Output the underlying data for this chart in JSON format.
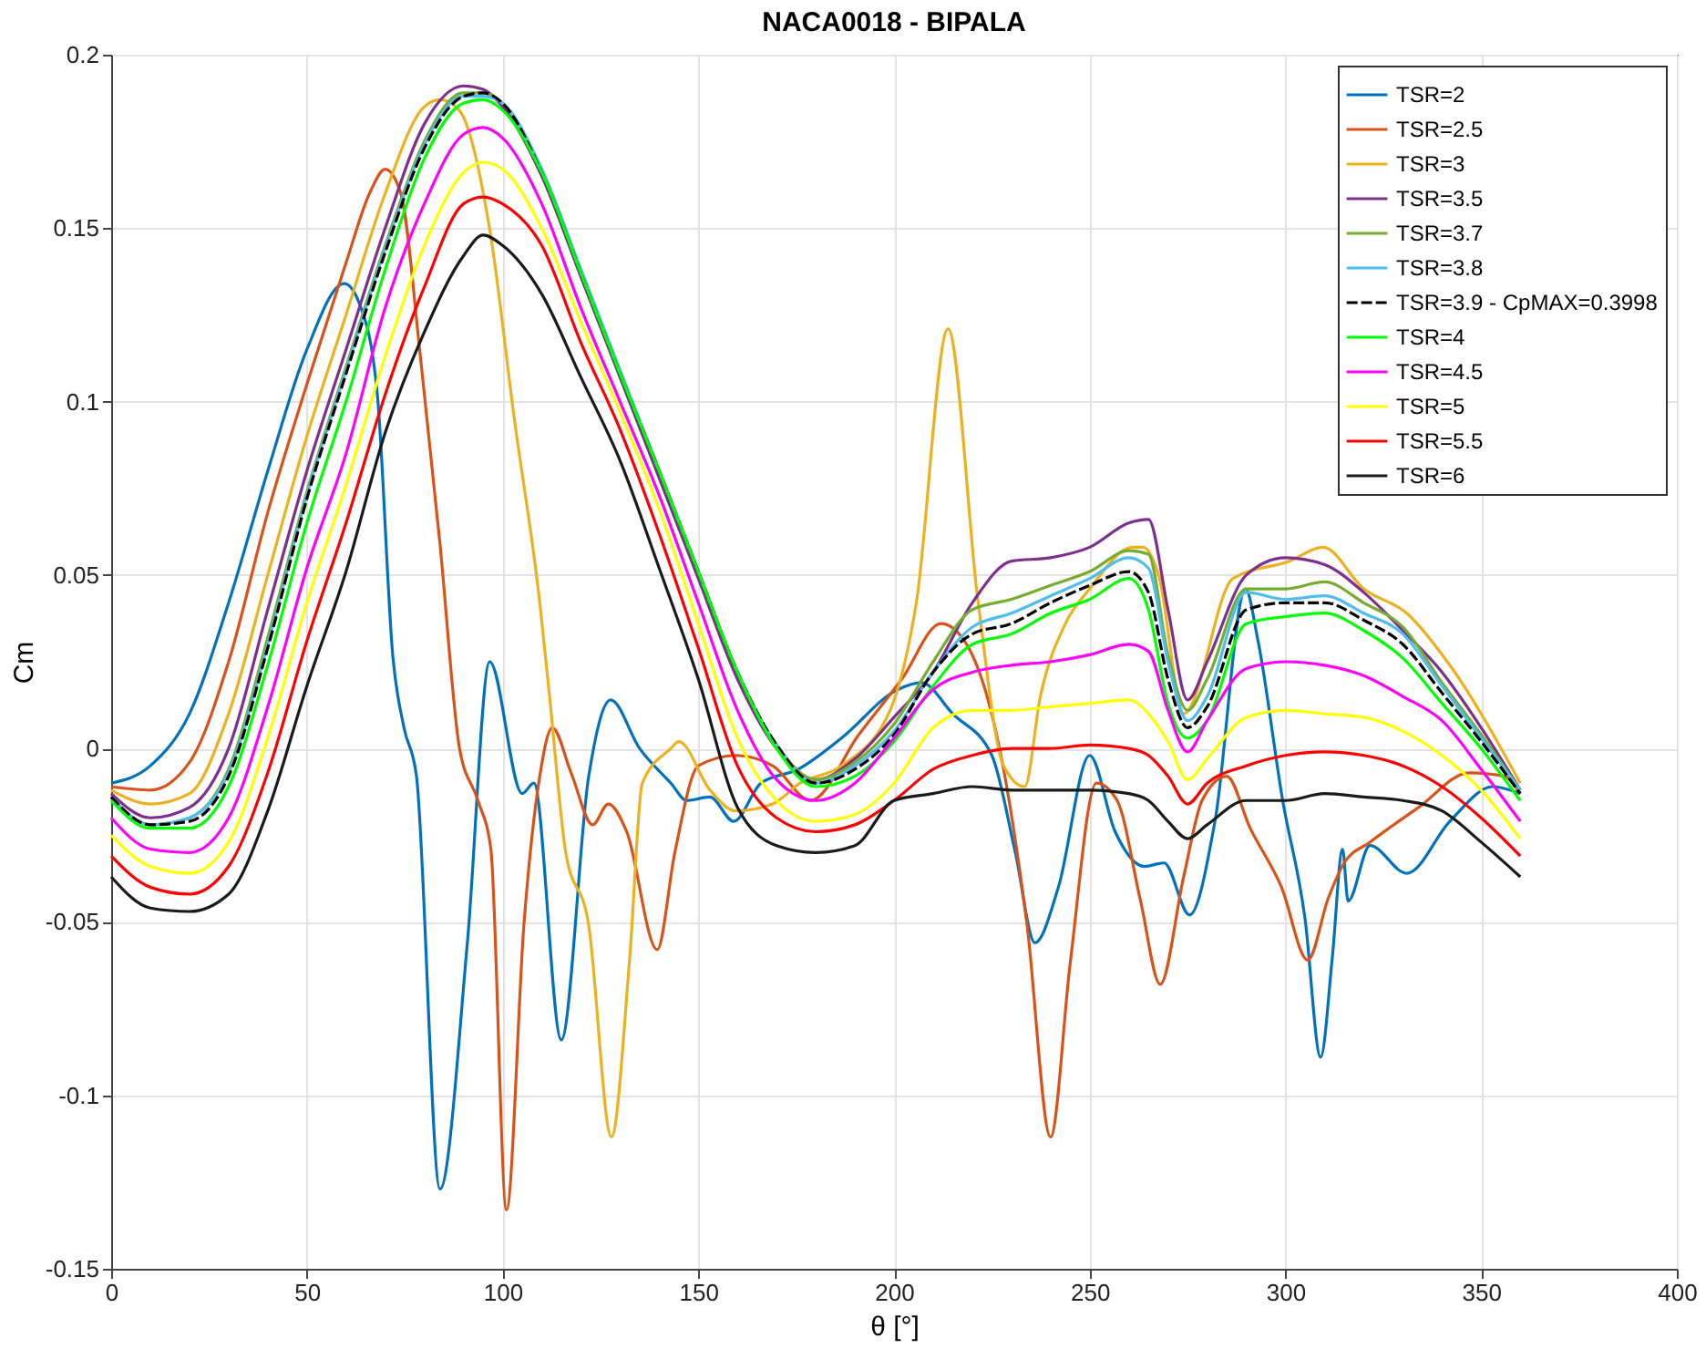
{
  "chart_data": {
    "type": "line",
    "title": "NACA0018 - BIPALA",
    "xlabel": "θ [°]",
    "ylabel": "Cm",
    "xlim": [
      0,
      400
    ],
    "xticks": [
      0,
      50,
      100,
      150,
      200,
      250,
      300,
      350,
      400
    ],
    "ylim": [
      -0.15,
      0.2
    ],
    "yticks": [
      -0.15,
      -0.1,
      -0.05,
      0,
      0.05,
      0.1,
      0.15,
      0.2
    ],
    "grid": true,
    "legend": "top right",
    "line_style": "solid",
    "x": [
      0,
      10,
      20,
      30,
      40,
      50,
      60,
      70,
      80,
      90,
      95,
      100,
      110,
      120,
      130,
      140,
      150,
      160,
      170,
      180,
      190,
      200,
      210,
      220,
      230,
      240,
      250,
      260,
      265,
      270,
      275,
      280,
      290,
      300,
      310,
      320,
      330,
      340,
      350,
      360
    ],
    "series": [
      {
        "name": "TSR=2",
        "color": "#0072bd",
        "x": [
          0,
          10,
          20,
          30,
          40,
          50,
          59.5,
          63.5,
          68,
          72,
          74.8,
          78,
          84,
          91,
          96.7,
          105,
          108,
          115,
          122,
          127.6,
          135,
          143,
          147,
          153,
          159,
          166,
          175.5,
          186.6,
          201,
          207,
          215,
          225,
          231,
          236,
          242,
          250,
          256.5,
          264,
          269,
          275.5,
          282,
          289.8,
          293,
          299.3,
          305,
          309,
          312,
          314.6,
          316,
          321.6,
          331,
          342,
          353,
          360
        ],
        "values": [
          -0.01,
          -0.005,
          0.01,
          0.042,
          0.08,
          0.115,
          0.134,
          0.128,
          0.102,
          0.026,
          0.006,
          -0.008,
          -0.127,
          -0.056,
          0.025,
          -0.013,
          -0.01,
          -0.084,
          -0.008,
          0.014,
          0.0,
          -0.01,
          -0.015,
          -0.014,
          -0.021,
          -0.01,
          -0.006,
          0.003,
          0.017,
          0.019,
          0.01,
          -0.002,
          -0.03,
          -0.056,
          -0.04,
          -0.002,
          -0.024,
          -0.034,
          -0.033,
          -0.048,
          -0.021,
          0.046,
          0.031,
          -0.015,
          -0.049,
          -0.089,
          -0.06,
          -0.029,
          -0.044,
          -0.028,
          -0.036,
          -0.021,
          -0.011,
          -0.013
        ]
      },
      {
        "name": "TSR=2.5",
        "color": "#d95319",
        "x": [
          0,
          10,
          20,
          30,
          40,
          50,
          60,
          66,
          70,
          74,
          79,
          84,
          89,
          93.7,
          97,
          101,
          105.5,
          109.5,
          112.7,
          117.5,
          123,
          127,
          131.7,
          139.5,
          144,
          150,
          159.6,
          169,
          178.7,
          191,
          202,
          212,
          218,
          228,
          234,
          240,
          245,
          251.7,
          257,
          263,
          268,
          274,
          278.7,
          285,
          291,
          299,
          305.7,
          311,
          315,
          321.6,
          334,
          347,
          356,
          360
        ],
        "values": [
          -0.011,
          -0.012,
          -0.004,
          0.025,
          0.068,
          0.105,
          0.14,
          0.16,
          0.167,
          0.16,
          0.113,
          0.059,
          0.0,
          -0.015,
          -0.029,
          -0.133,
          -0.05,
          -0.008,
          0.006,
          -0.007,
          -0.022,
          -0.016,
          -0.024,
          -0.058,
          -0.03,
          -0.005,
          -0.002,
          -0.005,
          -0.015,
          0.004,
          0.02,
          0.036,
          0.031,
          -0.006,
          -0.051,
          -0.112,
          -0.062,
          -0.01,
          -0.015,
          -0.044,
          -0.068,
          -0.037,
          -0.015,
          -0.008,
          -0.023,
          -0.04,
          -0.061,
          -0.043,
          -0.033,
          -0.027,
          -0.017,
          -0.007,
          -0.008,
          -0.013
        ]
      },
      {
        "name": "TSR=3",
        "color": "#edb120",
        "x": [
          0,
          10,
          20,
          30,
          40,
          50,
          60,
          70,
          80,
          84,
          88.9,
          96.8,
          103,
          109.5,
          112,
          116,
          122,
          127.8,
          132.5,
          135.7,
          143,
          145,
          153,
          159.6,
          169,
          176,
          186.6,
          199,
          205.7,
          213.8,
          221.5,
          228,
          233.4,
          237.4,
          243.8,
          250,
          261,
          263.6,
          267.6,
          274,
          286.6,
          301,
          309.6,
          320,
          331,
          342,
          360
        ],
        "values": [
          -0.012,
          -0.016,
          -0.013,
          0.01,
          0.05,
          0.09,
          0.125,
          0.16,
          0.185,
          0.187,
          0.184,
          0.149,
          0.095,
          0.042,
          0.015,
          -0.029,
          -0.051,
          -0.112,
          -0.06,
          -0.01,
          0.0,
          0.002,
          -0.012,
          -0.018,
          -0.016,
          -0.01,
          -0.005,
          0.011,
          0.042,
          0.121,
          0.042,
          -0.005,
          -0.011,
          0.015,
          0.036,
          0.046,
          0.058,
          0.058,
          0.05,
          0.01,
          0.049,
          0.054,
          0.058,
          0.046,
          0.039,
          0.024,
          -0.01
        ]
      },
      {
        "name": "TSR=3.5",
        "color": "#7e2f8e",
        "values": [
          -0.013,
          -0.02,
          -0.017,
          0.0,
          0.04,
          0.08,
          0.115,
          0.15,
          0.18,
          0.191,
          0.19,
          0.185,
          0.165,
          0.136,
          0.107,
          0.078,
          0.049,
          0.02,
          0.0,
          -0.009,
          -0.003,
          0.009,
          0.022,
          0.042,
          0.054,
          0.055,
          0.058,
          0.065,
          0.066,
          0.04,
          0.014,
          0.025,
          0.05,
          0.055,
          0.053,
          0.045,
          0.034,
          0.022,
          0.006,
          -0.012
        ]
      },
      {
        "name": "TSR=3.7",
        "color": "#77ac30",
        "values": [
          -0.014,
          -0.022,
          -0.02,
          -0.006,
          0.032,
          0.074,
          0.11,
          0.145,
          0.175,
          0.189,
          0.189,
          0.186,
          0.167,
          0.138,
          0.109,
          0.08,
          0.051,
          0.022,
          0.001,
          -0.009,
          -0.004,
          0.007,
          0.025,
          0.04,
          0.043,
          0.047,
          0.051,
          0.057,
          0.056,
          0.027,
          0.011,
          0.02,
          0.046,
          0.046,
          0.048,
          0.042,
          0.035,
          0.019,
          0.004,
          -0.012
        ]
      },
      {
        "name": "TSR=3.8",
        "color": "#4dbeee",
        "values": [
          -0.014,
          -0.022,
          -0.02,
          -0.007,
          0.03,
          0.073,
          0.109,
          0.144,
          0.174,
          0.188,
          0.188,
          0.186,
          0.167,
          0.138,
          0.109,
          0.08,
          0.051,
          0.022,
          0.001,
          -0.01,
          -0.005,
          0.005,
          0.022,
          0.035,
          0.039,
          0.044,
          0.049,
          0.055,
          0.052,
          0.025,
          0.008,
          0.015,
          0.045,
          0.043,
          0.044,
          0.039,
          0.033,
          0.018,
          0.003,
          -0.012
        ]
      },
      {
        "name": "TSR=3.9 - CpMAX=0.3998",
        "color": "#000000",
        "line_style": "dashed",
        "values": [
          -0.014,
          -0.022,
          -0.021,
          -0.008,
          0.029,
          0.072,
          0.108,
          0.143,
          0.173,
          0.188,
          0.189,
          0.186,
          0.166,
          0.137,
          0.108,
          0.08,
          0.051,
          0.022,
          0.001,
          -0.01,
          -0.006,
          0.004,
          0.022,
          0.033,
          0.036,
          0.042,
          0.047,
          0.051,
          0.045,
          0.02,
          0.006,
          0.012,
          0.04,
          0.042,
          0.042,
          0.037,
          0.03,
          0.016,
          0.002,
          -0.013
        ]
      },
      {
        "name": "TSR=4",
        "color": "#00ff00",
        "values": [
          -0.015,
          -0.023,
          -0.023,
          -0.011,
          0.024,
          0.065,
          0.1,
          0.138,
          0.17,
          0.186,
          0.187,
          0.184,
          0.166,
          0.137,
          0.108,
          0.08,
          0.051,
          0.022,
          0.0,
          -0.011,
          -0.008,
          0.002,
          0.018,
          0.03,
          0.033,
          0.039,
          0.043,
          0.049,
          0.04,
          0.013,
          0.003,
          0.008,
          0.036,
          0.038,
          0.039,
          0.034,
          0.026,
          0.013,
          0.0,
          -0.015
        ]
      },
      {
        "name": "TSR=4.5",
        "color": "#ff00ff",
        "values": [
          -0.02,
          -0.029,
          -0.03,
          -0.02,
          0.012,
          0.052,
          0.085,
          0.127,
          0.157,
          0.177,
          0.179,
          0.176,
          0.157,
          0.127,
          0.1,
          0.073,
          0.042,
          0.011,
          -0.009,
          -0.015,
          -0.01,
          0.003,
          0.017,
          0.022,
          0.024,
          0.025,
          0.027,
          0.03,
          0.028,
          0.011,
          -0.001,
          0.008,
          0.023,
          0.025,
          0.024,
          0.021,
          0.015,
          0.008,
          -0.006,
          -0.021
        ]
      },
      {
        "name": "TSR=5",
        "color": "#ffff00",
        "values": [
          -0.025,
          -0.034,
          -0.036,
          -0.027,
          0.003,
          0.042,
          0.076,
          0.113,
          0.145,
          0.166,
          0.169,
          0.167,
          0.15,
          0.123,
          0.097,
          0.069,
          0.036,
          0.003,
          -0.015,
          -0.021,
          -0.019,
          -0.01,
          0.006,
          0.011,
          0.011,
          0.012,
          0.013,
          0.014,
          0.01,
          0.002,
          -0.009,
          -0.003,
          0.009,
          0.011,
          0.01,
          0.009,
          0.005,
          -0.002,
          -0.012,
          -0.026
        ]
      },
      {
        "name": "TSR=5.5",
        "color": "#ff0000",
        "values": [
          -0.031,
          -0.04,
          -0.042,
          -0.034,
          -0.007,
          0.031,
          0.065,
          0.102,
          0.133,
          0.157,
          0.159,
          0.157,
          0.145,
          0.117,
          0.092,
          0.062,
          0.029,
          -0.005,
          -0.02,
          -0.024,
          -0.022,
          -0.015,
          -0.006,
          -0.002,
          0.0,
          0.0,
          0.001,
          0.0,
          -0.002,
          -0.008,
          -0.016,
          -0.01,
          -0.005,
          -0.002,
          -0.001,
          -0.002,
          -0.005,
          -0.011,
          -0.02,
          -0.031
        ]
      },
      {
        "name": "TSR=6",
        "color": "#1a1a1a",
        "values": [
          -0.037,
          -0.046,
          -0.047,
          -0.042,
          -0.018,
          0.018,
          0.051,
          0.091,
          0.12,
          0.142,
          0.148,
          0.145,
          0.131,
          0.107,
          0.083,
          0.052,
          0.02,
          -0.017,
          -0.028,
          -0.03,
          -0.028,
          -0.015,
          -0.013,
          -0.011,
          -0.012,
          -0.012,
          -0.012,
          -0.013,
          -0.015,
          -0.021,
          -0.026,
          -0.022,
          -0.015,
          -0.015,
          -0.013,
          -0.014,
          -0.015,
          -0.018,
          -0.027,
          -0.037
        ]
      }
    ]
  }
}
